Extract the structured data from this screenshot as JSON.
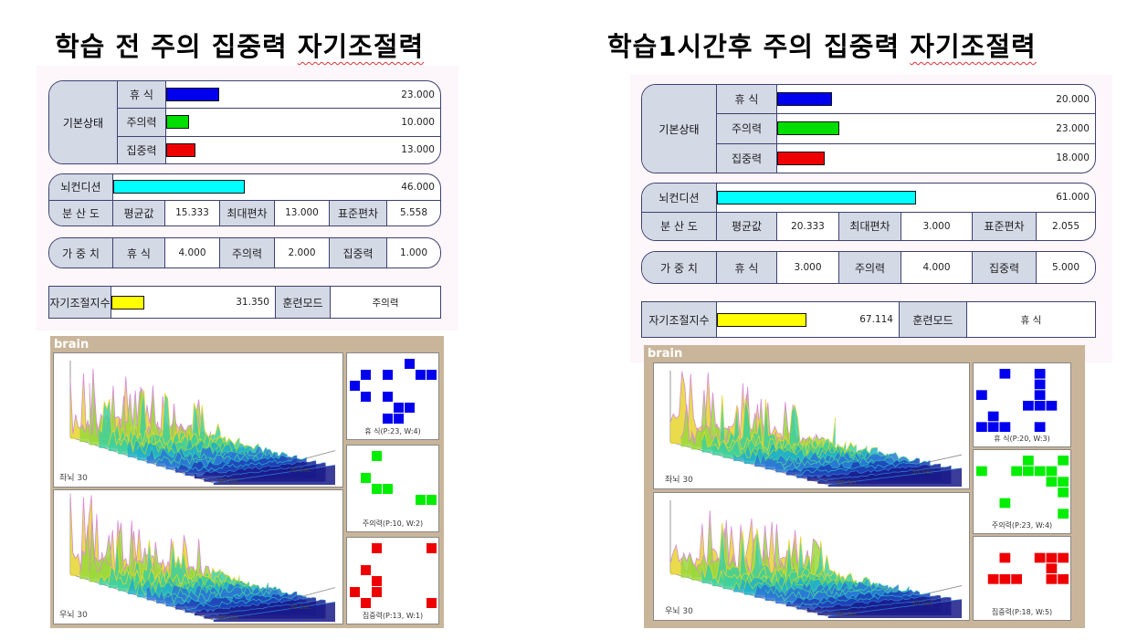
{
  "left": {
    "heading_main": "학습 전 주의 집중력 ",
    "heading_wavy": "자기조절력",
    "basic": {
      "label": "기본상태",
      "rows": [
        {
          "name": "휴  식",
          "value": "23.000",
          "level": 23,
          "color": "#0000ee"
        },
        {
          "name": "주의력",
          "value": "10.000",
          "level": 10,
          "color": "#00dd00"
        },
        {
          "name": "집중력",
          "value": "13.000",
          "level": 13,
          "color": "#ee0000"
        }
      ]
    },
    "condition": {
      "label": "뇌컨디션",
      "value": "46.000",
      "level": 46,
      "color": "#00ffff"
    },
    "dispersion": {
      "label": "분 산 도",
      "mean_label": "평균값",
      "mean": "15.333",
      "maxdev_label": "최대편차",
      "maxdev": "13.000",
      "std_label": "표준편차",
      "std": "5.558"
    },
    "weight": {
      "label": "가 중 치",
      "rest_label": "휴  식",
      "rest": "4.000",
      "attn_label": "주의력",
      "attn": "2.000",
      "conc_label": "집중력",
      "conc": "1.000"
    },
    "selfreg": {
      "label": "자기조절지수",
      "value": "31.350",
      "level": 31.35,
      "color": "#ffff00",
      "mode_label": "훈련모드",
      "mode": "주의력"
    },
    "brain": {
      "tag": "brain",
      "left_plot_label": "좌뇌 30",
      "right_plot_label": "우뇌 30",
      "axis_60": "60 Sec",
      "axis_30": "30 Sec",
      "rest_caption": "휴  식(P:23, W:4)",
      "attn_caption": "주의력(P:10, W:2)",
      "conc_caption": "집중력(P:13, W:1)",
      "rest_cells": [
        [
          1,
          1
        ],
        [
          3,
          1
        ],
        [
          5,
          0
        ],
        [
          6,
          1
        ],
        [
          7,
          1
        ],
        [
          0,
          2
        ],
        [
          1,
          3
        ],
        [
          3,
          3
        ],
        [
          4,
          4
        ],
        [
          5,
          4
        ],
        [
          3,
          5
        ],
        [
          4,
          5
        ]
      ],
      "attn_cells": [
        [
          2,
          0
        ],
        [
          1,
          2
        ],
        [
          2,
          3
        ],
        [
          3,
          3
        ],
        [
          6,
          4
        ],
        [
          7,
          4
        ]
      ],
      "conc_cells": [
        [
          2,
          0
        ],
        [
          7,
          0
        ],
        [
          1,
          2
        ],
        [
          2,
          3
        ],
        [
          0,
          4
        ],
        [
          2,
          4
        ],
        [
          1,
          5
        ],
        [
          7,
          5
        ]
      ]
    }
  },
  "right": {
    "heading_main": "학습1시간후  주의 집중력 ",
    "heading_wavy": "자기조절력",
    "basic": {
      "label": "기본상태",
      "rows": [
        {
          "name": "휴  식",
          "value": "20.000",
          "level": 20,
          "color": "#0000ee"
        },
        {
          "name": "주의력",
          "value": "23.000",
          "level": 23,
          "color": "#00dd00"
        },
        {
          "name": "집중력",
          "value": "18.000",
          "level": 18,
          "color": "#ee0000"
        }
      ]
    },
    "condition": {
      "label": "뇌컨디션",
      "value": "61.000",
      "level": 61,
      "color": "#00ffff"
    },
    "dispersion": {
      "label": "분 산 도",
      "mean_label": "평균값",
      "mean": "20.333",
      "maxdev_label": "최대편차",
      "maxdev": "3.000",
      "std_label": "표준편차",
      "std": "2.055"
    },
    "weight": {
      "label": "가 중 치",
      "rest_label": "휴  식",
      "rest": "3.000",
      "attn_label": "주의력",
      "attn": "4.000",
      "conc_label": "집중력",
      "conc": "5.000"
    },
    "selfreg": {
      "label": "자기조절지수",
      "value": "67.114",
      "level": 67.114,
      "color": "#ffff00",
      "mode_label": "훈련모드",
      "mode": "휴  식"
    },
    "brain": {
      "tag": "brain",
      "left_plot_label": "좌뇌 30",
      "right_plot_label": "우뇌 30",
      "axis_60": "60 Sec",
      "axis_30": "30 Sec",
      "rest_caption": "휴  식(P:20, W:3)",
      "attn_caption": "주의력(P:23, W:4)",
      "conc_caption": "집중력(P:18, W:5)",
      "rest_cells": [
        [
          2,
          0
        ],
        [
          5,
          0
        ],
        [
          5,
          1
        ],
        [
          0,
          2
        ],
        [
          5,
          2
        ],
        [
          4,
          3
        ],
        [
          5,
          3
        ],
        [
          6,
          3
        ],
        [
          1,
          4
        ],
        [
          0,
          5
        ],
        [
          1,
          5
        ],
        [
          2,
          5
        ],
        [
          5,
          5
        ]
      ],
      "attn_cells": [
        [
          4,
          0
        ],
        [
          7,
          0
        ],
        [
          0,
          1
        ],
        [
          3,
          1
        ],
        [
          4,
          1
        ],
        [
          5,
          1
        ],
        [
          6,
          1
        ],
        [
          6,
          2
        ],
        [
          7,
          2
        ],
        [
          7,
          3
        ],
        [
          2,
          4
        ],
        [
          7,
          5
        ]
      ],
      "conc_cells": [
        [
          2,
          1
        ],
        [
          5,
          1
        ],
        [
          6,
          1
        ],
        [
          7,
          1
        ],
        [
          6,
          2
        ],
        [
          1,
          3
        ],
        [
          2,
          3
        ],
        [
          3,
          3
        ],
        [
          6,
          3
        ],
        [
          7,
          3
        ]
      ]
    }
  }
}
